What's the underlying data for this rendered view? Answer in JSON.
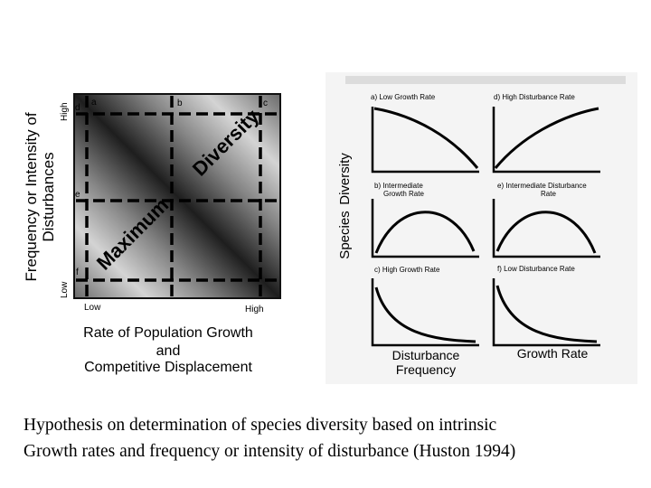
{
  "left_figure": {
    "y_axis_label_line1": "Frequency or Intensity of",
    "y_axis_label_line2": "Disturbances",
    "y_high": "High",
    "y_low": "Low",
    "x_low": "Low",
    "x_high": "High",
    "x_axis_label_line1": "Rate of Population Growth",
    "x_axis_label_line2": "and",
    "x_axis_label_line3": "Competitive Displacement",
    "diagonal_word_1": "Maximum",
    "diagonal_word_2": "Diversity",
    "point_labels": {
      "a": "a",
      "b": "b",
      "c": "c",
      "d": "d",
      "e": "e",
      "f": "f"
    }
  },
  "right_figure": {
    "y_axis_label_line1": "Species",
    "y_axis_label_line2": "Diversity",
    "x_label_left_line1": "Disturbance",
    "x_label_left_line2": "Frequency",
    "x_label_right": "Growth Rate",
    "panels": {
      "a": "a) Low Growth Rate",
      "b_line1": "b) Intermediate",
      "b_line2": "Growth Rate",
      "c": "c) High Growth Rate",
      "d": "d) High Disturbance Rate",
      "e_line1": "e) Intermediate Disturbance",
      "e_line2": "Rate",
      "f": "f) Low Disturbance Rate"
    }
  },
  "caption": {
    "line1": "Hypothesis on determination of species diversity based on intrinsic",
    "line2": "Growth rates and frequency or intensity of disturbance (Huston 1994)"
  }
}
